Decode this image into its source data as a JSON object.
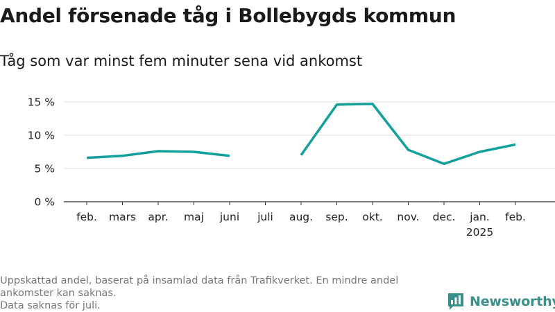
{
  "header": {
    "title": "Andel försenade tåg i Bollebygds kommun",
    "subtitle": "Tåg som var minst fem minuter sena vid ankomst"
  },
  "chart_data": {
    "type": "line",
    "title": "Andel försenade tåg i Bollebygds kommun",
    "subtitle": "Tåg som var minst fem minuter sena vid ankomst",
    "xlabel": "",
    "ylabel": "",
    "categories": [
      "feb.",
      "mars",
      "apr.",
      "maj",
      "juni",
      "juli",
      "aug.",
      "sep.",
      "okt.",
      "nov.",
      "dec.",
      "jan.",
      "feb."
    ],
    "year_label": "2025",
    "series": [
      {
        "color": "#12a09a",
        "values": [
          6.6,
          6.9,
          7.6,
          7.5,
          6.9,
          null,
          7.0,
          14.6,
          14.7,
          7.8,
          5.7,
          7.5,
          8.6
        ]
      }
    ],
    "ylim": [
      0,
      16
    ],
    "yticks": [
      0,
      5,
      10,
      15
    ],
    "ytick_labels": [
      "0 %",
      "5 %",
      "10 %",
      "15 %"
    ],
    "grid": true,
    "legend": "none"
  },
  "footer": {
    "note_line1": "Uppskattad andel, baserat på insamlad data från Trafikverket. En mindre andel ankomster kan saknas.",
    "note_line2": "Data saknas för juli."
  },
  "brand": {
    "name": "Newsworthy",
    "icon": "newsworthy-logo-icon",
    "color": "#3a8f88"
  }
}
